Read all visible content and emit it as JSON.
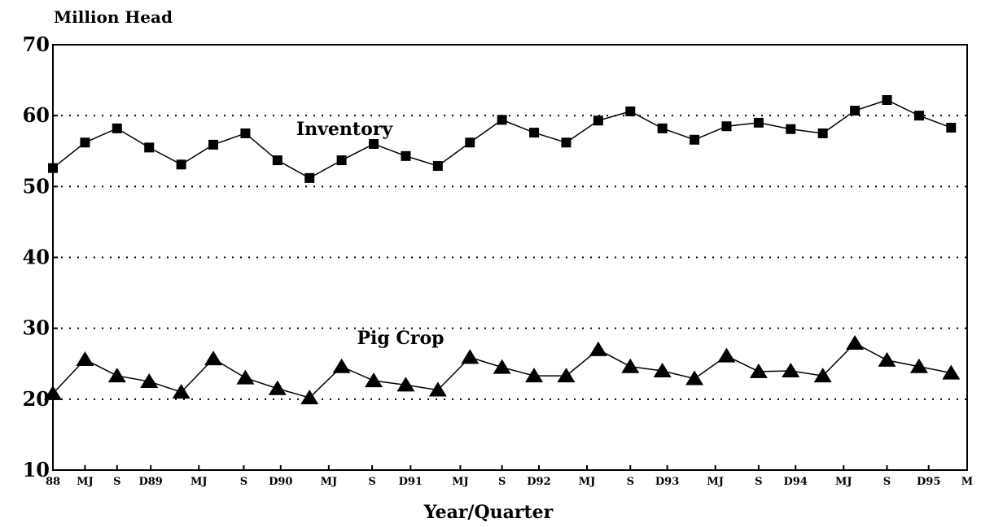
{
  "chart_data": {
    "type": "line",
    "y_label": "Million Head",
    "x_label": "Year/Quarter",
    "x": [
      0,
      1,
      2,
      3,
      4,
      5,
      6,
      7,
      8,
      9,
      10,
      11,
      12,
      13,
      14,
      15,
      16,
      17,
      18,
      19,
      20,
      21,
      22,
      23,
      24,
      25,
      26,
      27,
      28
    ],
    "xlim": [
      0,
      28.5
    ],
    "xticks": [
      {
        "value": 0,
        "label": "88"
      },
      {
        "value": 1,
        "label": "MJ"
      },
      {
        "value": 2,
        "label": "S"
      },
      {
        "value": 3.05,
        "label": "D89"
      },
      {
        "value": 4.55,
        "label": "MJ"
      },
      {
        "value": 5.95,
        "label": "S"
      },
      {
        "value": 7.1,
        "label": "D90"
      },
      {
        "value": 8.6,
        "label": "MJ"
      },
      {
        "value": 9.95,
        "label": "S"
      },
      {
        "value": 11.15,
        "label": "D91"
      },
      {
        "value": 12.7,
        "label": "MJ"
      },
      {
        "value": 14,
        "label": "S"
      },
      {
        "value": 15.15,
        "label": "D92"
      },
      {
        "value": 16.65,
        "label": "MJ"
      },
      {
        "value": 18,
        "label": "S"
      },
      {
        "value": 19.15,
        "label": "D93"
      },
      {
        "value": 20.65,
        "label": "MJ"
      },
      {
        "value": 22,
        "label": "S"
      },
      {
        "value": 23.15,
        "label": "D94"
      },
      {
        "value": 24.65,
        "label": "MJ"
      },
      {
        "value": 26,
        "label": "S"
      },
      {
        "value": 27.3,
        "label": "D95"
      },
      {
        "value": 28.5,
        "label": "M"
      }
    ],
    "ylim": [
      10,
      70
    ],
    "yticks": [
      10,
      20,
      30,
      40,
      50,
      60,
      70
    ],
    "grid_lines": [
      20,
      30,
      40,
      50,
      60
    ],
    "series": [
      {
        "name": "Inventory",
        "color": "#000000",
        "marker": "square",
        "values": [
          52.6,
          56.2,
          58.2,
          55.5,
          53.1,
          55.9,
          57.5,
          53.7,
          51.2,
          53.7,
          56.0,
          54.3,
          52.9,
          56.2,
          59.4,
          57.6,
          56.2,
          59.3,
          60.6,
          58.2,
          56.6,
          58.5,
          59.0,
          58.1,
          57.5,
          60.7,
          62.2,
          60.0,
          58.3
        ]
      },
      {
        "name": "Pig Crop",
        "color": "#000000",
        "marker": "triangle",
        "values": [
          20.8,
          25.6,
          23.3,
          22.5,
          21.0,
          25.7,
          23.0,
          21.5,
          20.2,
          24.6,
          22.6,
          22.0,
          21.3,
          25.9,
          24.5,
          23.3,
          23.3,
          27.0,
          24.6,
          24.0,
          22.9,
          26.1,
          23.9,
          24.0,
          23.3,
          27.9,
          25.5,
          24.6,
          23.7
        ]
      }
    ]
  }
}
